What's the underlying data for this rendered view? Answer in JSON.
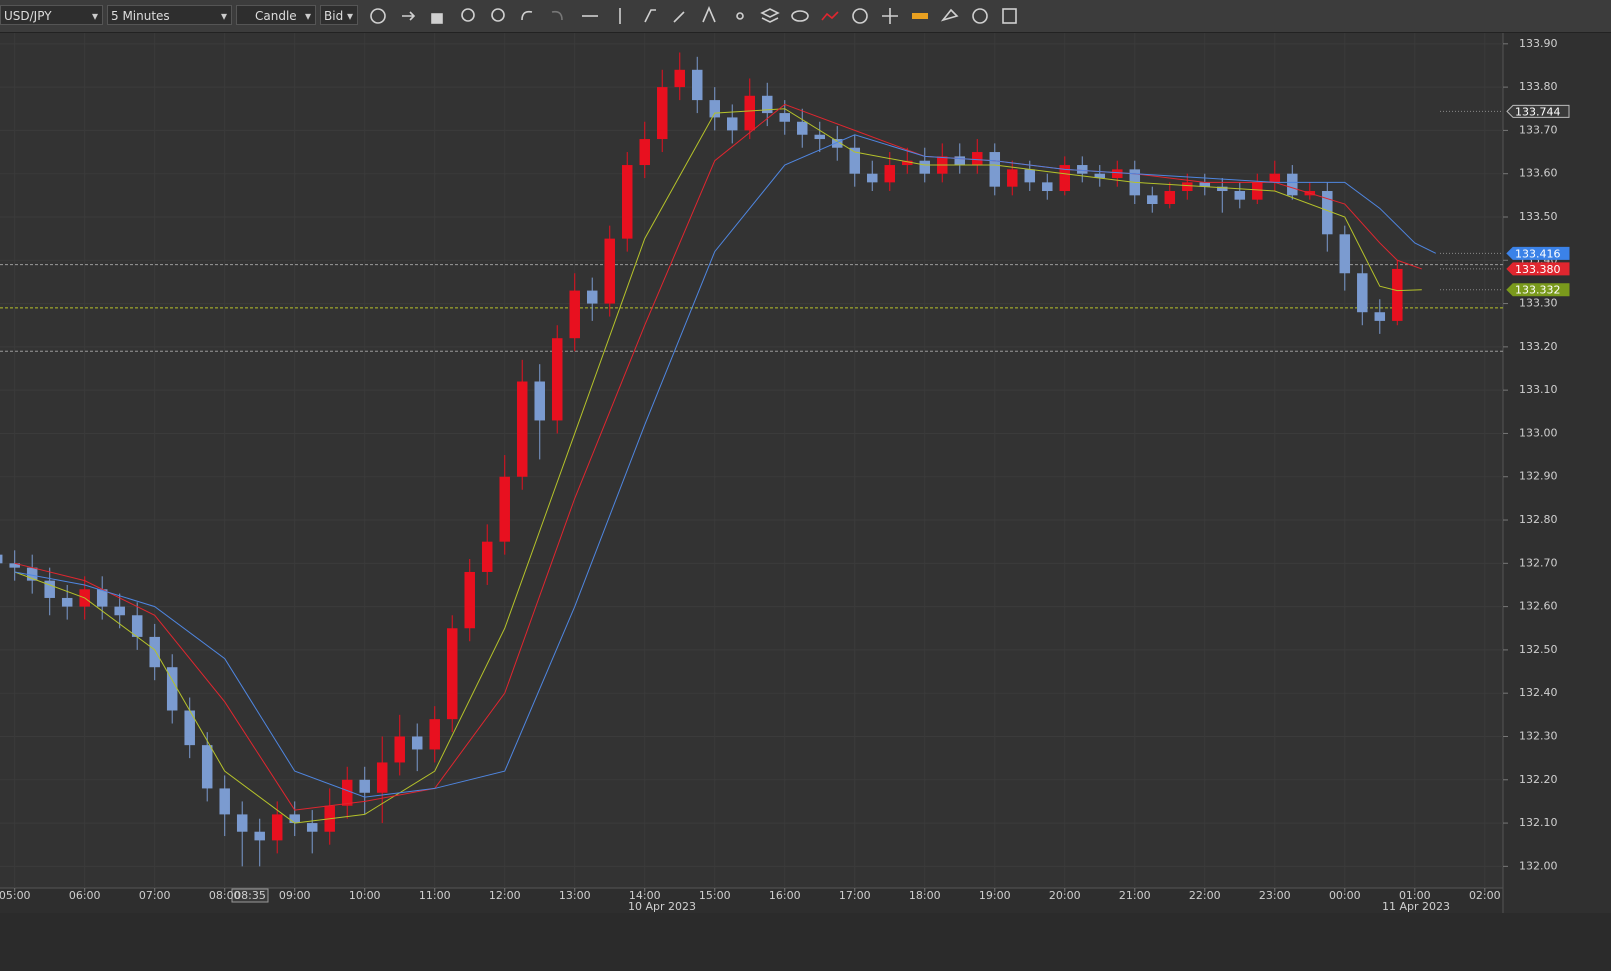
{
  "toolbar": {
    "symbol": "USD/JPY",
    "interval": "5 Minutes",
    "chart_style": "Candle",
    "price_side": "Bid"
  },
  "cursor_time": "08:35",
  "dates": [
    "10 Apr 2023",
    "11 Apr 2023"
  ],
  "chart_data": {
    "type": "candlestick",
    "xlim": [
      -0.21,
      21.26
    ],
    "ylim": [
      131.95,
      133.925
    ],
    "grid": true,
    "xticks": [
      {
        "value": 0,
        "label": "05:00"
      },
      {
        "value": 1,
        "label": "06:00"
      },
      {
        "value": 2,
        "label": "07:00"
      },
      {
        "value": 3,
        "label": "08:00"
      },
      {
        "value": 4,
        "label": "09:00"
      },
      {
        "value": 5,
        "label": "10:00"
      },
      {
        "value": 6,
        "label": "11:00"
      },
      {
        "value": 7,
        "label": "12:00"
      },
      {
        "value": 8,
        "label": "13:00"
      },
      {
        "value": 9,
        "label": "14:00"
      },
      {
        "value": 10,
        "label": "15:00"
      },
      {
        "value": 11,
        "label": "16:00"
      },
      {
        "value": 12,
        "label": "17:00"
      },
      {
        "value": 13,
        "label": "18:00"
      },
      {
        "value": 14,
        "label": "19:00"
      },
      {
        "value": 15,
        "label": "20:00"
      },
      {
        "value": 16,
        "label": "21:00"
      },
      {
        "value": 17,
        "label": "22:00"
      },
      {
        "value": 18,
        "label": "23:00"
      },
      {
        "value": 19,
        "label": "00:00"
      },
      {
        "value": 20,
        "label": "01:00"
      },
      {
        "value": 21,
        "label": "02:00"
      }
    ],
    "yticks": [
      {
        "value": 132,
        "label": "132.00"
      },
      {
        "value": 132.1,
        "label": "132.10"
      },
      {
        "value": 132.2,
        "label": "132.20"
      },
      {
        "value": 132.3,
        "label": "132.30"
      },
      {
        "value": 132.4,
        "label": "132.40"
      },
      {
        "value": 132.5,
        "label": "132.50"
      },
      {
        "value": 132.6,
        "label": "132.60"
      },
      {
        "value": 132.7,
        "label": "132.70"
      },
      {
        "value": 132.8,
        "label": "132.80"
      },
      {
        "value": 132.9,
        "label": "132.90"
      },
      {
        "value": 133,
        "label": "133.00"
      },
      {
        "value": 133.1,
        "label": "133.10"
      },
      {
        "value": 133.2,
        "label": "133.20"
      },
      {
        "value": 133.3,
        "label": "133.30"
      },
      {
        "value": 133.4,
        "label": "133.40"
      },
      {
        "value": 133.5,
        "label": "133.50"
      },
      {
        "value": 133.6,
        "label": "133.60"
      },
      {
        "value": 133.7,
        "label": "133.70"
      },
      {
        "value": 133.8,
        "label": "133.80"
      },
      {
        "value": 133.9,
        "label": "133.90"
      }
    ],
    "up_color": "#e8101f",
    "down_color": "#7b9bd0",
    "x": [
      -0.25,
      0,
      0.25,
      0.5,
      0.75,
      1,
      1.25,
      1.5,
      1.75,
      2,
      2.25,
      2.5,
      2.75,
      3,
      3.25,
      3.5,
      3.75,
      4,
      4.25,
      4.5,
      4.75,
      5,
      5.25,
      5.5,
      5.75,
      6,
      6.25,
      6.5,
      6.75,
      7,
      7.25,
      7.5,
      7.75,
      8,
      8.25,
      8.5,
      8.75,
      9,
      9.25,
      9.5,
      9.75,
      10,
      10.25,
      10.5,
      10.75,
      11,
      11.25,
      11.5,
      11.75,
      12,
      12.25,
      12.5,
      12.75,
      13,
      13.25,
      13.5,
      13.75,
      14,
      14.25,
      14.5,
      14.75,
      15,
      15.25,
      15.5,
      15.75,
      16,
      16.25,
      16.5,
      16.75,
      17,
      17.25,
      17.5,
      17.75,
      18,
      18.25,
      18.5,
      18.75,
      19,
      19.25,
      19.5,
      19.75
    ],
    "open": [
      132.72,
      132.7,
      132.69,
      132.66,
      132.62,
      132.6,
      132.64,
      132.6,
      132.58,
      132.53,
      132.46,
      132.36,
      132.28,
      132.18,
      132.12,
      132.08,
      132.06,
      132.12,
      132.1,
      132.08,
      132.14,
      132.2,
      132.17,
      132.24,
      132.3,
      132.27,
      132.34,
      132.55,
      132.68,
      132.75,
      132.9,
      133.12,
      133.03,
      133.22,
      133.33,
      133.3,
      133.45,
      133.62,
      133.68,
      133.8,
      133.84,
      133.77,
      133.73,
      133.7,
      133.78,
      133.74,
      133.72,
      133.69,
      133.68,
      133.66,
      133.6,
      133.58,
      133.62,
      133.63,
      133.6,
      133.64,
      133.62,
      133.65,
      133.57,
      133.61,
      133.58,
      133.56,
      133.62,
      133.6,
      133.59,
      133.61,
      133.55,
      133.53,
      133.56,
      133.58,
      133.57,
      133.56,
      133.54,
      133.58,
      133.6,
      133.55,
      133.56,
      133.46,
      133.37,
      133.28,
      133.26
    ],
    "high": [
      132.75,
      132.73,
      132.72,
      132.69,
      132.65,
      132.67,
      132.67,
      132.63,
      132.61,
      132.56,
      132.49,
      132.39,
      132.31,
      132.21,
      132.15,
      132.11,
      132.15,
      132.15,
      132.13,
      132.18,
      132.23,
      132.23,
      132.3,
      132.35,
      132.33,
      132.37,
      132.58,
      132.71,
      132.79,
      132.95,
      133.17,
      133.16,
      133.25,
      133.37,
      133.36,
      133.48,
      133.65,
      133.72,
      133.84,
      133.88,
      133.87,
      133.8,
      133.76,
      133.82,
      133.81,
      133.77,
      133.75,
      133.72,
      133.71,
      133.69,
      133.63,
      133.65,
      133.66,
      133.66,
      133.67,
      133.67,
      133.68,
      133.67,
      133.63,
      133.63,
      133.6,
      133.64,
      133.64,
      133.62,
      133.63,
      133.63,
      133.57,
      133.58,
      133.6,
      133.6,
      133.59,
      133.58,
      133.6,
      133.63,
      133.62,
      133.58,
      133.58,
      133.48,
      133.39,
      133.31,
      133.4
    ],
    "low": [
      132.67,
      132.66,
      132.63,
      132.58,
      132.57,
      132.57,
      132.57,
      132.55,
      132.5,
      132.43,
      132.33,
      132.25,
      132.15,
      132.07,
      132.0,
      132.0,
      132.03,
      132.07,
      132.03,
      132.05,
      132.11,
      132.12,
      132.1,
      132.21,
      132.22,
      132.24,
      132.31,
      132.52,
      132.65,
      132.72,
      132.87,
      132.94,
      133.0,
      133.19,
      133.26,
      133.27,
      133.42,
      133.59,
      133.65,
      133.77,
      133.74,
      133.7,
      133.67,
      133.68,
      133.71,
      133.69,
      133.66,
      133.65,
      133.63,
      133.57,
      133.56,
      133.56,
      133.6,
      133.58,
      133.58,
      133.6,
      133.6,
      133.55,
      133.55,
      133.56,
      133.54,
      133.55,
      133.58,
      133.57,
      133.57,
      133.53,
      133.51,
      133.52,
      133.54,
      133.55,
      133.51,
      133.52,
      133.53,
      133.56,
      133.54,
      133.54,
      133.42,
      133.33,
      133.25,
      133.23,
      133.25
    ],
    "close": [
      132.7,
      132.69,
      132.66,
      132.62,
      132.6,
      132.64,
      132.6,
      132.58,
      132.53,
      132.46,
      132.36,
      132.28,
      132.18,
      132.12,
      132.08,
      132.06,
      132.12,
      132.1,
      132.08,
      132.14,
      132.2,
      132.17,
      132.24,
      132.3,
      132.27,
      132.34,
      132.55,
      132.68,
      132.75,
      132.9,
      133.12,
      133.03,
      133.22,
      133.33,
      133.3,
      133.45,
      133.62,
      133.68,
      133.8,
      133.84,
      133.77,
      133.73,
      133.7,
      133.78,
      133.74,
      133.72,
      133.69,
      133.68,
      133.66,
      133.6,
      133.58,
      133.62,
      133.63,
      133.6,
      133.64,
      133.62,
      133.65,
      133.57,
      133.61,
      133.58,
      133.56,
      133.62,
      133.6,
      133.59,
      133.61,
      133.55,
      133.53,
      133.56,
      133.58,
      133.57,
      133.56,
      133.54,
      133.58,
      133.6,
      133.55,
      133.56,
      133.46,
      133.37,
      133.28,
      133.26,
      133.38
    ],
    "series": [
      {
        "color": "#b5c22a",
        "x": [
          0,
          1,
          2,
          3,
          4,
          5,
          6,
          7,
          8,
          9,
          10,
          11,
          12,
          13,
          14,
          15,
          16,
          17,
          18,
          19,
          19.5,
          19.75,
          20.1
        ],
        "values": [
          132.68,
          132.62,
          132.5,
          132.22,
          132.1,
          132.12,
          132.22,
          132.55,
          133.0,
          133.45,
          133.74,
          133.75,
          133.65,
          133.62,
          133.62,
          133.6,
          133.58,
          133.57,
          133.56,
          133.5,
          133.34,
          133.33,
          133.332
        ]
      },
      {
        "color": "#e0262f",
        "x": [
          0,
          1,
          2,
          3,
          4,
          5,
          6,
          7,
          8,
          9,
          10,
          11,
          12,
          13,
          14,
          15,
          16,
          17,
          18,
          19,
          19.5,
          19.75,
          20.1
        ],
        "values": [
          132.7,
          132.66,
          132.58,
          132.38,
          132.13,
          132.15,
          132.18,
          132.4,
          132.85,
          133.25,
          133.63,
          133.76,
          133.7,
          133.64,
          133.63,
          133.61,
          133.6,
          133.58,
          133.58,
          133.53,
          133.44,
          133.4,
          133.38
        ]
      },
      {
        "color": "#4f86e0",
        "x": [
          0,
          1,
          2,
          3,
          4,
          5,
          6,
          7,
          8,
          9,
          10,
          11,
          12,
          13,
          14,
          15,
          16,
          17,
          18,
          19,
          19.5,
          20,
          20.3
        ],
        "values": [
          132.68,
          132.65,
          132.6,
          132.48,
          132.22,
          132.16,
          132.18,
          132.22,
          132.6,
          133.02,
          133.42,
          133.62,
          133.69,
          133.64,
          133.63,
          133.61,
          133.6,
          133.59,
          133.58,
          133.58,
          133.52,
          133.44,
          133.416
        ]
      }
    ],
    "levels": {
      "values": [
        133.39,
        133.29,
        133.19
      ],
      "colors": [
        "#9a9a9a",
        "#b5c22a",
        "#9a9a9a"
      ]
    },
    "price_tags": {
      "values": [
        133.744,
        133.416,
        133.38,
        133.332
      ],
      "value_labels": [
        "133.744",
        "133.416",
        "133.380",
        "133.332"
      ],
      "colors": [
        "#3a3a3a",
        "#3b82e8",
        "#e0262f",
        "#7a9a1c"
      ]
    }
  }
}
